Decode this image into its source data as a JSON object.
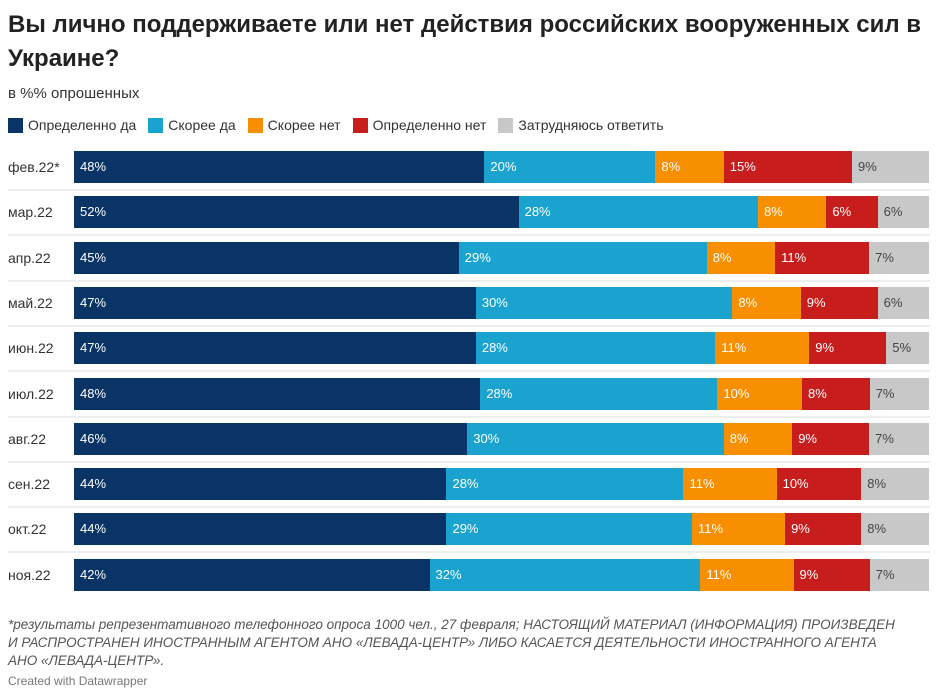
{
  "chart_data": {
    "type": "bar",
    "orientation": "horizontal",
    "stacked": true,
    "title": "Вы лично поддерживаете или нет действия российских вооруженных сил в Украине?",
    "subtitle": "в %% опрошенных",
    "legend_position": "top",
    "categories": [
      "фев.22*",
      "мар.22",
      "апр.22",
      "май.22",
      "июн.22",
      "июл.22",
      "авг.22",
      "сен.22",
      "окт.22",
      "ноя.22"
    ],
    "series": [
      {
        "name": "Определенно да",
        "color": "#0b3466",
        "label_color": "#ffffff",
        "values": [
          48,
          52,
          45,
          47,
          47,
          48,
          46,
          44,
          44,
          42
        ]
      },
      {
        "name": "Скорее да",
        "color": "#1ba3cf",
        "label_color": "#ffffff",
        "values": [
          20,
          28,
          29,
          30,
          28,
          28,
          30,
          28,
          29,
          32
        ]
      },
      {
        "name": "Скорее нет",
        "color": "#f78f00",
        "label_color": "#ffffff",
        "values": [
          8,
          8,
          8,
          8,
          11,
          10,
          8,
          11,
          11,
          11
        ]
      },
      {
        "name": "Определенно нет",
        "color": "#c71e1d",
        "label_color": "#ffffff",
        "values": [
          15,
          6,
          11,
          9,
          9,
          8,
          9,
          10,
          9,
          9
        ]
      },
      {
        "name": "Затрудняюсь ответить",
        "color": "#c8c8c8",
        "label_color": "#444444",
        "values": [
          9,
          6,
          7,
          6,
          5,
          7,
          7,
          8,
          8,
          7
        ]
      }
    ],
    "value_suffix": "%"
  },
  "notes": "*результаты репрезентативного телефонного опроса 1000 чел., 27 февраля; НАСТОЯЩИЙ МАТЕРИАЛ (ИНФОРМАЦИЯ) ПРОИЗВЕДЕН И РАСПРОСТРАНЕН ИНОСТРАННЫМ АГЕНТОМ АНО «ЛЕВАДА-ЦЕНТР» ЛИБО КАСАЕТСЯ ДЕЯТЕЛЬНОСТИ ИНОСТРАННОГО АГЕНТА АНО «ЛЕВАДА-ЦЕНТР».",
  "credit": "Created with Datawrapper"
}
